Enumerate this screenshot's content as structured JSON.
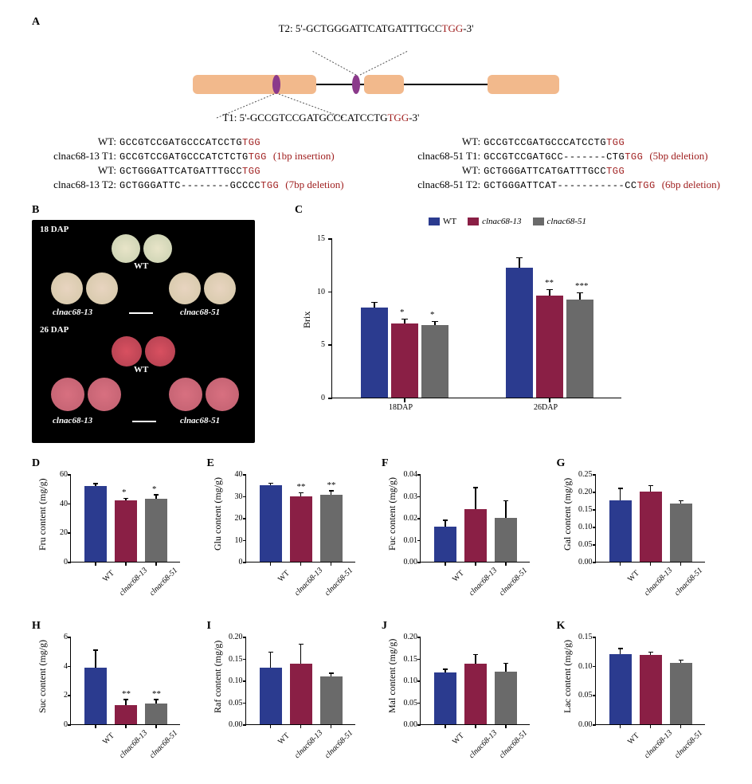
{
  "colors": {
    "wt": "#2b3b8f",
    "m13": "#8a1f45",
    "m51": "#6a6a6a",
    "exon": "#f2b98c",
    "target": "#8b3a8b",
    "pam": "#a02020",
    "axis": "#000000",
    "bg": "#ffffff"
  },
  "panelA": {
    "label": "A",
    "t2_label": "T2: 5'-GCTGGGATTCATGATTTGCC",
    "t2_pam": "TGG",
    "t2_suffix": "-3'",
    "t1_label": "T1: 5'-GCCGTCCGATGCCCATCCTG",
    "t1_pam": "TGG",
    "t1_suffix": "-3'",
    "left": [
      {
        "label": "WT:",
        "seq": "GCCGTCCGATGCCCATCCTG",
        "pam": "TGG",
        "note": ""
      },
      {
        "label": "clnac68-13 T1:",
        "seq": "GCCGTCCGATGCCCATCTCTG",
        "pam": "TGG",
        "note": "(1bp insertion)"
      },
      {
        "label": "WT:",
        "seq": "GCTGGGATTCATGATTTGCC",
        "pam": "TGG",
        "note": ""
      },
      {
        "label": "clnac68-13 T2:",
        "seq": "GCTGGGATTC--------GCCCC",
        "pam": "TGG",
        "note": "(7bp deletion)"
      }
    ],
    "right": [
      {
        "label": "WT:",
        "seq": "GCCGTCCGATGCCCATCCTG",
        "pam": "TGG",
        "note": ""
      },
      {
        "label": "clnac68-51 T1:",
        "seq": "GCCGTCCGATGCC-------CTG",
        "pam": "TGG",
        "note": "(5bp deletion)"
      },
      {
        "label": "WT:",
        "seq": "GCTGGGATTCATGATTTGCC",
        "pam": "TGG",
        "note": ""
      },
      {
        "label": "clnac68-51 T2:",
        "seq": "GCTGGGATTCAT-----------CC",
        "pam": "TGG",
        "note": "(6bp deletion)"
      }
    ]
  },
  "panelB": {
    "label": "B",
    "top_dap": "18 DAP",
    "bot_dap": "26 DAP",
    "wt": "WT",
    "m13": "clnac68-13",
    "m51": "clnac68-51"
  },
  "panelC": {
    "label": "C",
    "ylabel": "Brix",
    "ymax": 15,
    "ystep": 5,
    "legend": [
      "WT",
      "clnac68-13",
      "clnac68-51"
    ],
    "groups": [
      {
        "name": "18DAP",
        "vals": [
          8.5,
          7.0,
          6.8
        ],
        "errs": [
          0.5,
          0.4,
          0.4
        ],
        "sigs": [
          "",
          "*",
          "*"
        ]
      },
      {
        "name": "26DAP",
        "vals": [
          12.2,
          9.6,
          9.2
        ],
        "errs": [
          1.0,
          0.6,
          0.7
        ],
        "sigs": [
          "",
          "**",
          "***"
        ]
      }
    ]
  },
  "small": {
    "labels": [
      "WT",
      "clnac68-13",
      "clnac68-51"
    ],
    "panels": [
      {
        "id": "D",
        "ylabel": "Fru content (mg/g)",
        "ymax": 60,
        "ystep": 20,
        "vals": [
          52,
          42,
          43
        ],
        "errs": [
          1.5,
          1.5,
          3
        ],
        "sigs": [
          "",
          "*",
          "*"
        ]
      },
      {
        "id": "E",
        "ylabel": "Glu content (mg/g)",
        "ymax": 40,
        "ystep": 10,
        "vals": [
          35,
          30,
          30.5
        ],
        "errs": [
          1,
          1.5,
          2
        ],
        "sigs": [
          "",
          "**",
          "**"
        ]
      },
      {
        "id": "F",
        "ylabel": "Fuc content (mg/g)",
        "ymax": 0.04,
        "ystep": 0.01,
        "vals": [
          0.016,
          0.024,
          0.02
        ],
        "errs": [
          0.003,
          0.01,
          0.008
        ],
        "sigs": [
          "",
          "",
          ""
        ]
      },
      {
        "id": "G",
        "ylabel": "Gal content (mg/g)",
        "ymax": 0.25,
        "ystep": 0.05,
        "vals": [
          0.175,
          0.2,
          0.167
        ],
        "errs": [
          0.035,
          0.018,
          0.008
        ],
        "sigs": [
          "",
          "",
          ""
        ]
      },
      {
        "id": "H",
        "ylabel": "Suc content (mg/g)",
        "ymax": 6,
        "ystep": 2,
        "vals": [
          3.9,
          1.3,
          1.4
        ],
        "errs": [
          1.2,
          0.4,
          0.3
        ],
        "sigs": [
          "",
          "**",
          "**"
        ]
      },
      {
        "id": "I",
        "ylabel": "Raf content (mg/g)",
        "ymax": 0.2,
        "ystep": 0.05,
        "vals": [
          0.13,
          0.138,
          0.11
        ],
        "errs": [
          0.035,
          0.045,
          0.007
        ],
        "sigs": [
          "",
          "",
          ""
        ]
      },
      {
        "id": "J",
        "ylabel": "Mal content (mg/g)",
        "ymax": 0.2,
        "ystep": 0.05,
        "vals": [
          0.118,
          0.138,
          0.12
        ],
        "errs": [
          0.008,
          0.022,
          0.02
        ],
        "sigs": [
          "",
          "",
          ""
        ]
      },
      {
        "id": "K",
        "ylabel": "Lac content (mg/g)",
        "ymax": 0.15,
        "ystep": 0.05,
        "vals": [
          0.12,
          0.118,
          0.105
        ],
        "errs": [
          0.01,
          0.006,
          0.005
        ],
        "sigs": [
          "",
          "",
          ""
        ]
      }
    ]
  }
}
